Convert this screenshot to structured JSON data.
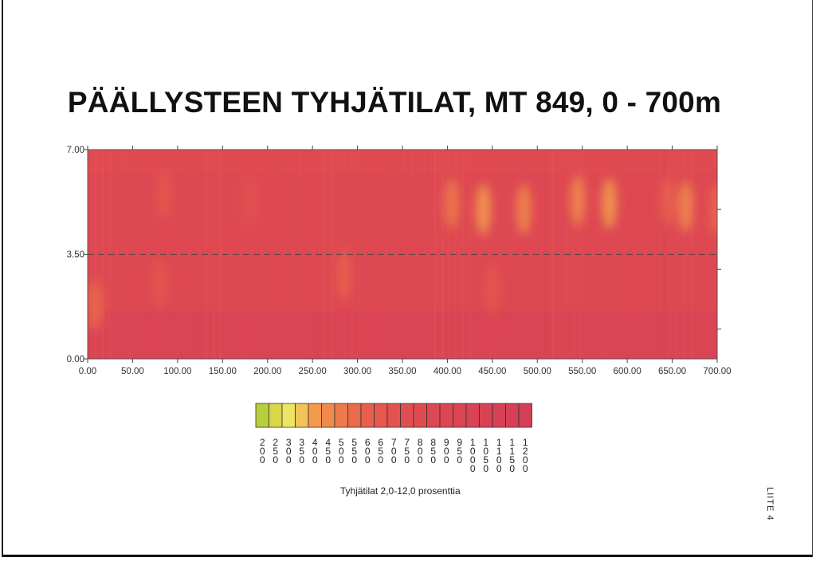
{
  "chart_data": {
    "type": "heatmap",
    "title": "PÄÄLLYSTEEN TYHJÄTILAT, MT 849, 0 - 700m",
    "xlabel": "",
    "ylabel": "",
    "xlim": [
      0,
      700
    ],
    "ylim": [
      0,
      7
    ],
    "x_ticks": [
      "0.00",
      "50.00",
      "100.00",
      "150.00",
      "200.00",
      "250.00",
      "300.00",
      "350.00",
      "400.00",
      "450.00",
      "500.00",
      "550.00",
      "600.00",
      "650.00",
      "700.00"
    ],
    "y_ticks": [
      "0.00",
      "3.50",
      "7.00"
    ],
    "centerline_y": 3.5,
    "grid": false,
    "value_range": [
      2.0,
      12.0
    ],
    "base_value": 8.5,
    "hotspots": [
      {
        "x": 8,
        "y": 1.8,
        "value": 5.5
      },
      {
        "x": 85,
        "y": 5.5,
        "value": 6.5
      },
      {
        "x": 80,
        "y": 2.5,
        "value": 6.5
      },
      {
        "x": 180,
        "y": 5.3,
        "value": 7.0
      },
      {
        "x": 285,
        "y": 2.8,
        "value": 6.0
      },
      {
        "x": 405,
        "y": 5.2,
        "value": 5.0
      },
      {
        "x": 440,
        "y": 5.0,
        "value": 4.0
      },
      {
        "x": 450,
        "y": 2.3,
        "value": 6.5
      },
      {
        "x": 485,
        "y": 5.0,
        "value": 4.5
      },
      {
        "x": 545,
        "y": 5.3,
        "value": 4.5
      },
      {
        "x": 580,
        "y": 5.2,
        "value": 4.0
      },
      {
        "x": 645,
        "y": 5.3,
        "value": 6.0
      },
      {
        "x": 665,
        "y": 5.1,
        "value": 4.5
      },
      {
        "x": 700,
        "y": 5.0,
        "value": 5.5
      }
    ],
    "colorbar": {
      "label": "Tyhjätilat 2,0-12,0 prosenttia",
      "bins": [
        {
          "label": "2.00",
          "color": "#b8cf3c"
        },
        {
          "label": "2.50",
          "color": "#d8d64a"
        },
        {
          "label": "3.00",
          "color": "#ece463"
        },
        {
          "label": "3.50",
          "color": "#f4c25a"
        },
        {
          "label": "4.00",
          "color": "#f29b4d"
        },
        {
          "label": "4.50",
          "color": "#ef8a4c"
        },
        {
          "label": "5.00",
          "color": "#ed7a4b"
        },
        {
          "label": "5.50",
          "color": "#ea6a4c"
        },
        {
          "label": "6.00",
          "color": "#e8604d"
        },
        {
          "label": "6.50",
          "color": "#e6584e"
        },
        {
          "label": "7.00",
          "color": "#e4524f"
        },
        {
          "label": "7.50",
          "color": "#e24e50"
        },
        {
          "label": "8.00",
          "color": "#e04b51"
        },
        {
          "label": "8.50",
          "color": "#de4852"
        },
        {
          "label": "9.00",
          "color": "#dc4653"
        },
        {
          "label": "9.50",
          "color": "#da4454"
        },
        {
          "label": "10.00",
          "color": "#d94354"
        },
        {
          "label": "10.50",
          "color": "#d84255"
        },
        {
          "label": "11.00",
          "color": "#d74155"
        },
        {
          "label": "11.50",
          "color": "#d64056"
        },
        {
          "label": "12.00",
          "color": "#d53f56"
        }
      ]
    }
  },
  "side_label": "LIITE 4"
}
